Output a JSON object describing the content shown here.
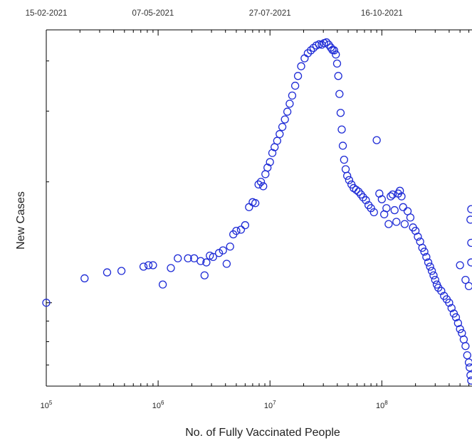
{
  "chart_data": {
    "type": "scatter",
    "title": "",
    "xlabel": "No. of Fully Vaccinated People",
    "ylabel": "New Cases",
    "x_scale": "log",
    "y_scale": "log",
    "xlim": [
      100000,
      640000000
    ],
    "ylim": [
      6.2,
      47.8
    ],
    "x_tick_labels": [
      {
        "base": "10",
        "exp": "5",
        "value": 100000
      },
      {
        "base": "10",
        "exp": "6",
        "value": 1000000
      },
      {
        "base": "10",
        "exp": "7",
        "value": 10000000
      },
      {
        "base": "10",
        "exp": "8",
        "value": 100000000
      }
    ],
    "top_axis_labels": [
      {
        "text": "15-02-2021",
        "x_value": 100000
      },
      {
        "text": "07-05-2021",
        "x_value": 900000
      },
      {
        "text": "27-07-2021",
        "x_value": 10000000
      },
      {
        "text": "16-10-2021",
        "x_value": 100000000
      }
    ],
    "marker_color": "#1e2bd6",
    "marker": "hollow-circle",
    "grid": false,
    "series": [
      {
        "points": [
          [
            100000,
            10.0
          ],
          [
            220000,
            11.5
          ],
          [
            350000,
            11.9
          ],
          [
            470000,
            12.0
          ],
          [
            740000,
            12.3
          ],
          [
            820000,
            12.4
          ],
          [
            900000,
            12.4
          ],
          [
            1100000,
            11.1
          ],
          [
            1300000,
            12.2
          ],
          [
            1500000,
            12.9
          ],
          [
            1850000,
            12.9
          ],
          [
            2100000,
            12.9
          ],
          [
            2400000,
            12.7
          ],
          [
            2600000,
            11.7
          ],
          [
            2700000,
            12.6
          ],
          [
            2900000,
            13.1
          ],
          [
            3100000,
            13.0
          ],
          [
            3500000,
            13.3
          ],
          [
            3800000,
            13.5
          ],
          [
            4100000,
            12.5
          ],
          [
            4400000,
            13.8
          ],
          [
            4700000,
            14.8
          ],
          [
            5000000,
            15.1
          ],
          [
            5500000,
            15.2
          ],
          [
            6000000,
            15.6
          ],
          [
            6500000,
            17.3
          ],
          [
            7000000,
            17.8
          ],
          [
            7400000,
            17.7
          ],
          [
            7900000,
            19.7
          ],
          [
            8300000,
            20.0
          ],
          [
            8700000,
            19.5
          ],
          [
            9100000,
            20.9
          ],
          [
            9500000,
            21.7
          ],
          [
            10000000,
            22.4
          ],
          [
            10500000,
            23.6
          ],
          [
            11000000,
            24.4
          ],
          [
            11600000,
            25.3
          ],
          [
            12200000,
            26.3
          ],
          [
            12900000,
            27.4
          ],
          [
            13600000,
            28.6
          ],
          [
            14300000,
            29.9
          ],
          [
            15000000,
            31.3
          ],
          [
            15800000,
            32.8
          ],
          [
            16800000,
            34.7
          ],
          [
            17800000,
            36.7
          ],
          [
            19000000,
            38.8
          ],
          [
            20400000,
            40.6
          ],
          [
            21800000,
            41.8
          ],
          [
            23200000,
            42.5
          ],
          [
            24500000,
            43.1
          ],
          [
            26000000,
            43.7
          ],
          [
            27500000,
            44.0
          ],
          [
            29000000,
            43.9
          ],
          [
            30500000,
            44.3
          ],
          [
            32000000,
            44.5
          ],
          [
            33500000,
            43.9
          ],
          [
            35000000,
            43.2
          ],
          [
            36200000,
            42.6
          ],
          [
            37500000,
            42.5
          ],
          [
            38800000,
            41.5
          ],
          [
            39800000,
            39.4
          ],
          [
            40800000,
            36.7
          ],
          [
            41800000,
            33.1
          ],
          [
            42800000,
            29.7
          ],
          [
            43800000,
            27.0
          ],
          [
            44800000,
            24.6
          ],
          [
            46000000,
            22.7
          ],
          [
            47500000,
            21.5
          ],
          [
            49000000,
            20.7
          ],
          [
            51000000,
            20.2
          ],
          [
            53500000,
            19.7
          ],
          [
            56000000,
            19.3
          ],
          [
            59000000,
            19.1
          ],
          [
            62000000,
            18.9
          ],
          [
            65000000,
            18.6
          ],
          [
            68000000,
            18.3
          ],
          [
            72000000,
            18.0
          ],
          [
            76000000,
            17.5
          ],
          [
            80000000,
            17.2
          ],
          [
            85000000,
            16.8
          ],
          [
            90000000,
            25.4
          ],
          [
            95000000,
            18.7
          ],
          [
            100000000,
            18.1
          ],
          [
            105000000,
            16.6
          ],
          [
            110000000,
            17.2
          ],
          [
            115000000,
            15.7
          ],
          [
            120000000,
            18.4
          ],
          [
            125000000,
            18.6
          ],
          [
            130000000,
            17.0
          ],
          [
            135000000,
            15.9
          ],
          [
            140000000,
            18.7
          ],
          [
            145000000,
            19.0
          ],
          [
            150000000,
            18.4
          ],
          [
            155000000,
            17.3
          ],
          [
            160000000,
            15.7
          ],
          [
            170000000,
            16.9
          ],
          [
            180000000,
            16.3
          ],
          [
            190000000,
            15.4
          ],
          [
            200000000,
            15.1
          ],
          [
            210000000,
            14.6
          ],
          [
            220000000,
            14.2
          ],
          [
            230000000,
            13.7
          ],
          [
            240000000,
            13.4
          ],
          [
            250000000,
            13.0
          ],
          [
            260000000,
            12.6
          ],
          [
            270000000,
            12.3
          ],
          [
            280000000,
            12.0
          ],
          [
            290000000,
            11.7
          ],
          [
            300000000,
            11.4
          ],
          [
            310000000,
            11.1
          ],
          [
            320000000,
            10.9
          ],
          [
            340000000,
            10.7
          ],
          [
            360000000,
            10.4
          ],
          [
            380000000,
            10.2
          ],
          [
            400000000,
            10.0
          ],
          [
            420000000,
            9.7
          ],
          [
            440000000,
            9.4
          ],
          [
            460000000,
            9.2
          ],
          [
            480000000,
            8.9
          ],
          [
            500000000,
            8.6
          ],
          [
            520000000,
            8.4
          ],
          [
            540000000,
            8.1
          ],
          [
            560000000,
            7.8
          ],
          [
            580000000,
            7.4
          ],
          [
            600000000,
            7.1
          ],
          [
            610000000,
            6.9
          ],
          [
            620000000,
            6.6
          ],
          [
            630000000,
            6.4
          ],
          [
            500000000,
            12.4
          ],
          [
            560000000,
            11.4
          ],
          [
            600000000,
            11.0
          ],
          [
            630000000,
            12.6
          ],
          [
            630000000,
            14.1
          ],
          [
            620000000,
            16.1
          ],
          [
            630000000,
            17.1
          ]
        ]
      }
    ]
  }
}
